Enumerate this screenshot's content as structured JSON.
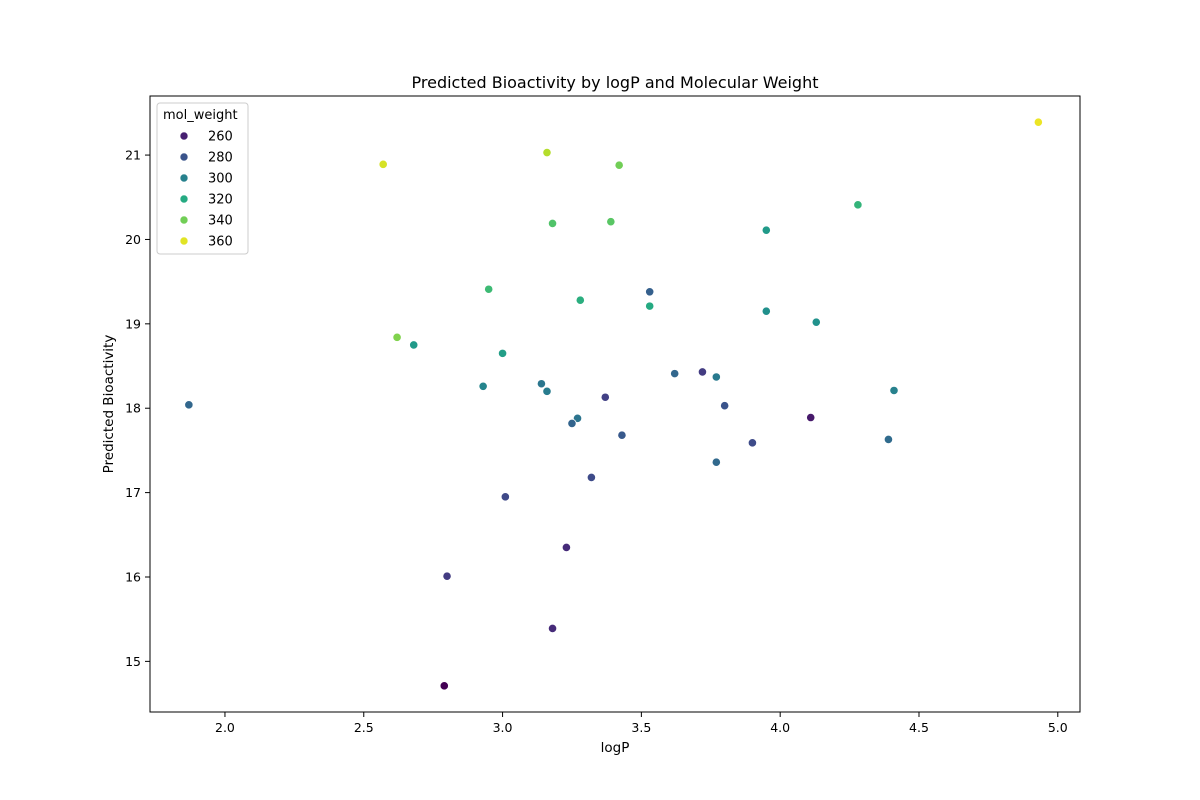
{
  "chart_data": {
    "type": "scatter",
    "title": "Predicted Bioactivity by logP and Molecular Weight",
    "xlabel": "logP",
    "ylabel": "Predicted Bioactivity",
    "xlim": [
      1.73,
      5.08
    ],
    "ylim": [
      14.4,
      21.7
    ],
    "xticks": [
      "2.0",
      "2.5",
      "3.0",
      "3.5",
      "4.0",
      "4.5",
      "5.0"
    ],
    "yticks": [
      "15",
      "16",
      "17",
      "18",
      "19",
      "20",
      "21"
    ],
    "grid": false,
    "colormap": "viridis",
    "hue_range": [
      250,
      365
    ],
    "legend": {
      "title": "mol_weight",
      "placement": "top-left",
      "entries": [
        {
          "label": "260",
          "value": 260
        },
        {
          "label": "280",
          "value": 280
        },
        {
          "label": "300",
          "value": 300
        },
        {
          "label": "320",
          "value": 320
        },
        {
          "label": "340",
          "value": 340
        },
        {
          "label": "360",
          "value": 360
        }
      ]
    },
    "points": [
      {
        "x": 4.93,
        "y": 21.39,
        "mw": 362
      },
      {
        "x": 2.57,
        "y": 20.89,
        "mw": 358
      },
      {
        "x": 3.16,
        "y": 21.03,
        "mw": 352
      },
      {
        "x": 3.42,
        "y": 20.88,
        "mw": 340
      },
      {
        "x": 4.28,
        "y": 20.41,
        "mw": 325
      },
      {
        "x": 3.18,
        "y": 20.19,
        "mw": 333
      },
      {
        "x": 3.39,
        "y": 20.21,
        "mw": 335
      },
      {
        "x": 3.95,
        "y": 20.11,
        "mw": 312
      },
      {
        "x": 2.95,
        "y": 19.41,
        "mw": 328
      },
      {
        "x": 3.53,
        "y": 19.38,
        "mw": 285
      },
      {
        "x": 3.28,
        "y": 19.28,
        "mw": 322
      },
      {
        "x": 3.53,
        "y": 19.21,
        "mw": 320
      },
      {
        "x": 3.95,
        "y": 19.15,
        "mw": 307
      },
      {
        "x": 4.13,
        "y": 19.02,
        "mw": 308
      },
      {
        "x": 2.62,
        "y": 18.84,
        "mw": 343
      },
      {
        "x": 2.68,
        "y": 18.75,
        "mw": 312
      },
      {
        "x": 3.0,
        "y": 18.65,
        "mw": 314
      },
      {
        "x": 3.72,
        "y": 18.43,
        "mw": 270
      },
      {
        "x": 3.62,
        "y": 18.41,
        "mw": 288
      },
      {
        "x": 3.77,
        "y": 18.37,
        "mw": 297
      },
      {
        "x": 2.93,
        "y": 18.26,
        "mw": 302
      },
      {
        "x": 3.14,
        "y": 18.29,
        "mw": 295
      },
      {
        "x": 4.41,
        "y": 18.21,
        "mw": 300
      },
      {
        "x": 3.16,
        "y": 18.2,
        "mw": 298
      },
      {
        "x": 3.37,
        "y": 18.13,
        "mw": 272
      },
      {
        "x": 1.87,
        "y": 18.04,
        "mw": 288
      },
      {
        "x": 3.8,
        "y": 18.03,
        "mw": 280
      },
      {
        "x": 4.11,
        "y": 17.89,
        "mw": 258
      },
      {
        "x": 3.27,
        "y": 17.88,
        "mw": 294
      },
      {
        "x": 3.25,
        "y": 17.82,
        "mw": 287
      },
      {
        "x": 3.43,
        "y": 17.68,
        "mw": 282
      },
      {
        "x": 4.39,
        "y": 17.63,
        "mw": 290
      },
      {
        "x": 3.9,
        "y": 17.59,
        "mw": 276
      },
      {
        "x": 3.77,
        "y": 17.36,
        "mw": 289
      },
      {
        "x": 3.32,
        "y": 17.18,
        "mw": 276
      },
      {
        "x": 3.01,
        "y": 16.95,
        "mw": 275
      },
      {
        "x": 3.23,
        "y": 16.35,
        "mw": 264
      },
      {
        "x": 2.8,
        "y": 16.01,
        "mw": 270
      },
      {
        "x": 3.18,
        "y": 15.39,
        "mw": 264
      },
      {
        "x": 2.79,
        "y": 14.71,
        "mw": 250
      }
    ]
  }
}
